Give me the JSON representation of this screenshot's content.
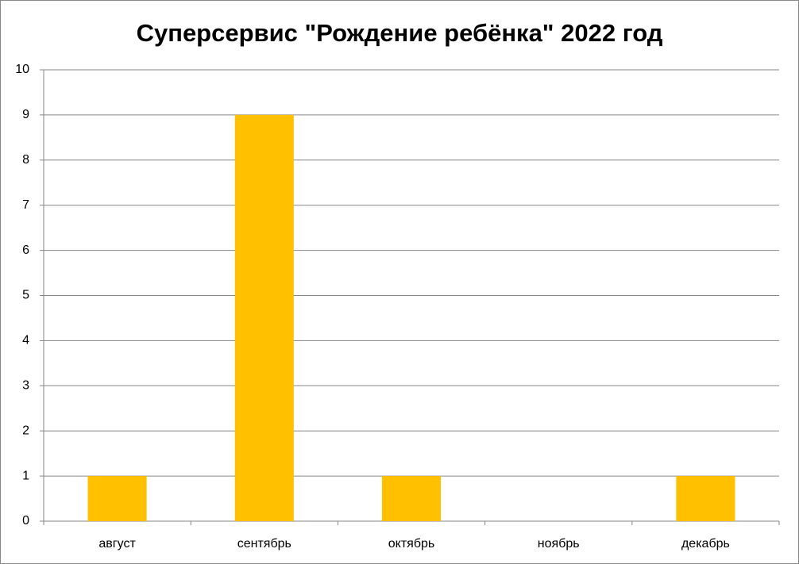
{
  "chart_data": {
    "type": "bar",
    "title": "Суперсервис \"Рождение ребёнка\" 2022 год",
    "categories": [
      "август",
      "сентябрь",
      "октябрь",
      "ноябрь",
      "декабрь"
    ],
    "values": [
      1,
      9,
      1,
      0,
      1
    ],
    "color": "#ffc000",
    "ylim": [
      0,
      10
    ],
    "yticks": [
      0,
      1,
      2,
      3,
      4,
      5,
      6,
      7,
      8,
      9,
      10
    ],
    "grid": true
  }
}
